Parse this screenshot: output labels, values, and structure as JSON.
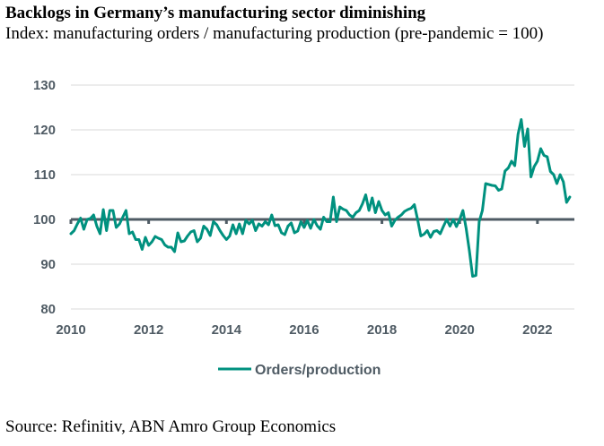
{
  "header": {
    "title": "Backlogs in Germany’s manufacturing sector diminishing",
    "subtitle": "Index: manufacturing orders / manufacturing production (pre-pandemic = 100)"
  },
  "footer": {
    "source": "Source: Refinitiv, ABN Amro Group Economics"
  },
  "colors": {
    "series": "#00917f",
    "reference_line": "#4f5b64",
    "grid": "#d9d9d9",
    "tick_text": "#4f5b64"
  },
  "chart_data": {
    "type": "line",
    "title": "Backlogs in Germany’s manufacturing sector diminishing",
    "subtitle": "Index: manufacturing orders / manufacturing production (pre-pandemic = 100)",
    "xlabel": "",
    "ylabel": "",
    "xlim": [
      2010.0,
      2022.95
    ],
    "ylim": [
      80,
      130
    ],
    "yticks": [
      80,
      90,
      100,
      110,
      120,
      130
    ],
    "xticks": [
      2010,
      2012,
      2014,
      2016,
      2018,
      2020,
      2022
    ],
    "xtick_labels": [
      "2010",
      "2012",
      "2014",
      "2016",
      "2018",
      "2020",
      "2022"
    ],
    "grid": true,
    "reference_line": {
      "y": 100,
      "label": ""
    },
    "legend": {
      "position": "bottom-center",
      "entries": [
        "Orders/production"
      ]
    },
    "x_start": 2010.0,
    "x_step_months": 1,
    "series": [
      {
        "name": "Orders/production",
        "values": [
          96.8,
          97.5,
          99.0,
          100.3,
          97.8,
          100.0,
          100.2,
          101.0,
          98.5,
          96.8,
          102.2,
          97.5,
          102.0,
          102.0,
          98.2,
          99.0,
          100.5,
          102.0,
          96.8,
          97.2,
          95.5,
          95.5,
          93.3,
          96.0,
          94.2,
          95.0,
          96.2,
          95.8,
          95.5,
          94.3,
          93.8,
          93.8,
          92.8,
          97.0,
          95.0,
          95.2,
          96.3,
          97.2,
          97.5,
          95.0,
          95.8,
          98.5,
          97.8,
          96.4,
          99.5,
          98.8,
          97.5,
          96.4,
          95.5,
          96.3,
          98.8,
          96.8,
          99.0,
          96.8,
          99.8,
          99.0,
          99.8,
          97.5,
          99.0,
          98.5,
          99.5,
          98.8,
          101.0,
          98.6,
          98.8,
          97.0,
          96.6,
          98.5,
          99.2,
          97.0,
          97.4,
          99.5,
          98.2,
          99.8,
          98.0,
          100.0,
          98.6,
          97.8,
          100.5,
          99.5,
          99.5,
          105.0,
          99.5,
          102.8,
          102.3,
          102.0,
          101.0,
          100.5,
          101.5,
          102.0,
          103.5,
          105.5,
          102.0,
          104.8,
          101.5,
          104.0,
          102.0,
          101.0,
          101.5,
          98.5,
          99.8,
          100.5,
          101.0,
          101.8,
          102.2,
          102.5,
          103.3,
          100.0,
          96.3,
          96.7,
          97.5,
          96.0,
          97.3,
          97.5,
          96.8,
          98.5,
          100.0,
          98.5,
          100.0,
          98.4,
          100.0,
          102.0,
          98.0,
          93.0,
          87.3,
          87.5,
          99.5,
          102.0,
          108.0,
          107.8,
          107.6,
          107.5,
          106.5,
          106.8,
          110.8,
          111.5,
          113.0,
          112.0,
          119.0,
          122.3,
          116.3,
          120.2,
          109.5,
          111.8,
          113.0,
          115.8,
          114.3,
          114.0,
          110.7,
          110.0,
          108.0,
          110.0,
          108.4,
          103.8,
          105.0
        ]
      }
    ]
  }
}
